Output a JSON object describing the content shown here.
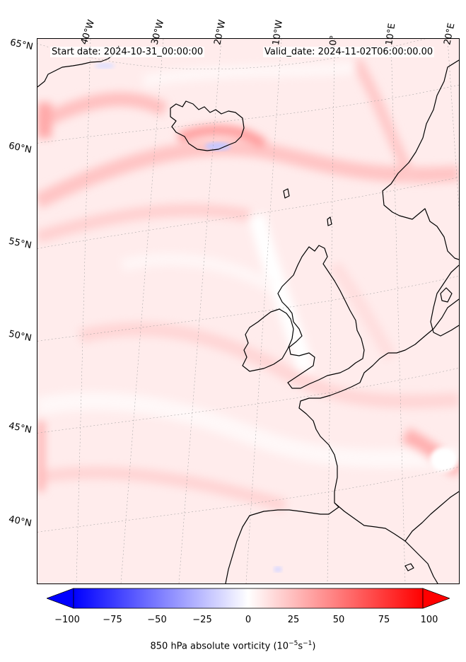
{
  "header": {
    "start_date": "Start date: 2024-10-31_00:00:00",
    "valid_date": "Valid_date: 2024-11-02T06:00:00.00"
  },
  "longitude_labels": [
    "40°W",
    "30°W",
    "20°W",
    "10°W",
    "0°",
    "10°E",
    "20°E"
  ],
  "latitude_labels": [
    "65°N",
    "60°N",
    "55°N",
    "50°N",
    "45°N",
    "40°N"
  ],
  "colorbar": {
    "ticks": [
      "−100",
      "−75",
      "−50",
      "−25",
      "0",
      "25",
      "50",
      "75",
      "100"
    ],
    "label": "850 hPa absolute vorticity (10",
    "label_exp1": "−5",
    "label_mid": "s",
    "label_exp2": "−1",
    "label_end": ")",
    "min": -100,
    "max": 100,
    "colors": {
      "negative": "#0000ff",
      "zero": "#ffffff",
      "positive": "#ff0000"
    }
  }
}
